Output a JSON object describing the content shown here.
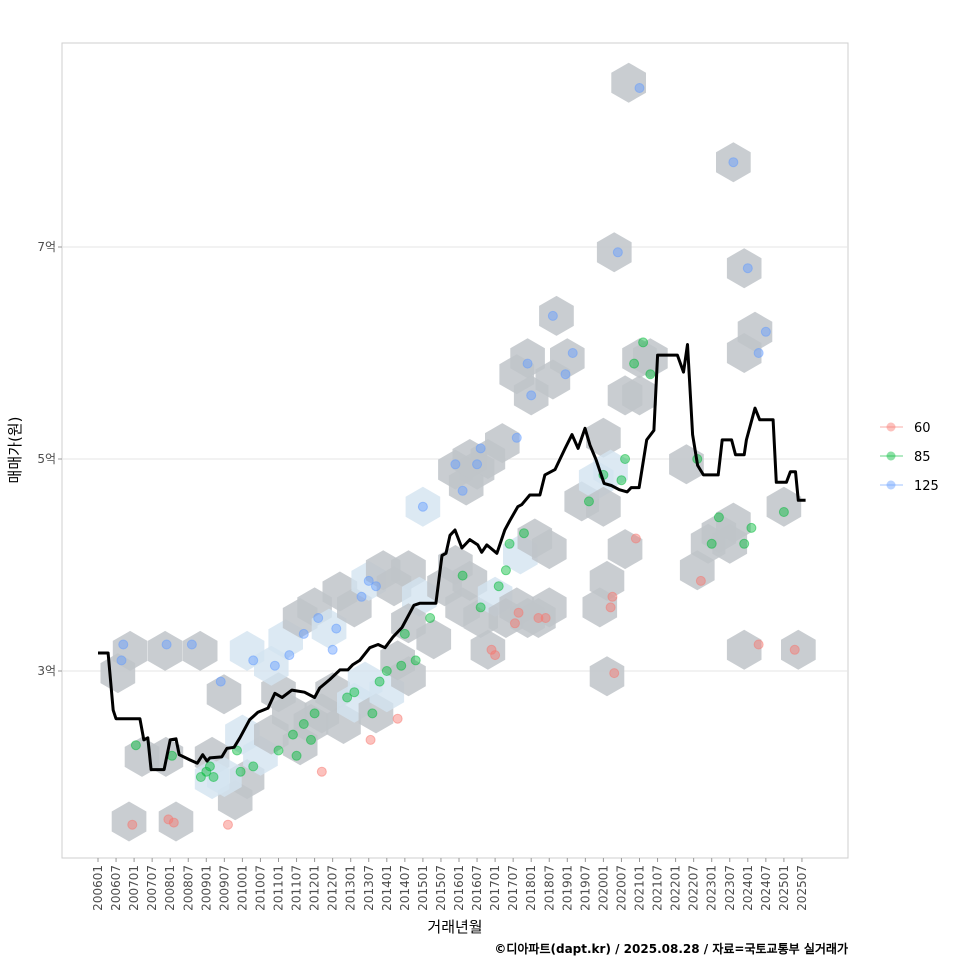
{
  "chart_data": {
    "type": "scatter",
    "xlabel": "거래년월",
    "ylabel": "매매가(원)",
    "caption": "©디아파트(dapt.kr) / 2025.08.28 / 자료=국토교통부 실거래가",
    "y_ticks": [
      {
        "value": 3,
        "label": "3억"
      },
      {
        "value": 5,
        "label": "5억"
      },
      {
        "value": 7,
        "label": "7억"
      }
    ],
    "y_unit": "억원",
    "ylim": [
      1.2,
      8.9
    ],
    "xlim": [
      2005.0,
      2026.3
    ],
    "x_ticks": [
      "200601",
      "200607",
      "200701",
      "200707",
      "200801",
      "200807",
      "200901",
      "200907",
      "201001",
      "201007",
      "201101",
      "201107",
      "201201",
      "201207",
      "201301",
      "201307",
      "201401",
      "201407",
      "201501",
      "201507",
      "201601",
      "201607",
      "201701",
      "201707",
      "201801",
      "201807",
      "201901",
      "201907",
      "202001",
      "202007",
      "202101",
      "202107",
      "202201",
      "202207",
      "202301",
      "202307",
      "202401",
      "202407",
      "202501",
      "202507"
    ],
    "grid": true,
    "legend": {
      "placement": "right",
      "entries": [
        {
          "label": "60",
          "color": "#F8766D"
        },
        {
          "label": "85",
          "color": "#00BA38"
        },
        {
          "label": "125",
          "color": "#619CFF"
        }
      ]
    },
    "hex_color": "#bfc4c9",
    "hex_light_color": "#d3e3f0",
    "hexbins": [
      [
        2006.86,
        1.58,
        0
      ],
      [
        2008.16,
        1.58,
        0
      ],
      [
        2006.55,
        2.98,
        0
      ],
      [
        2006.89,
        3.19,
        0
      ],
      [
        2007.86,
        3.19,
        0
      ],
      [
        2008.83,
        3.19,
        0
      ],
      [
        2009.49,
        2.78,
        0
      ],
      [
        2007.22,
        2.19,
        0
      ],
      [
        2007.88,
        2.19,
        0
      ],
      [
        2009.16,
        2.19,
        0
      ],
      [
        2009.8,
        1.78,
        0
      ],
      [
        2010.13,
        1.98,
        0
      ],
      [
        2010.13,
        3.19,
        1
      ],
      [
        2009.16,
        1.98,
        1
      ],
      [
        2009.5,
        2.0,
        1
      ],
      [
        2010.0,
        2.4,
        1
      ],
      [
        2010.5,
        2.2,
        1
      ],
      [
        2010.8,
        2.4,
        0
      ],
      [
        2011.0,
        2.8,
        0
      ],
      [
        2011.3,
        2.6,
        0
      ],
      [
        2011.6,
        2.3,
        0
      ],
      [
        2011.9,
        2.5,
        0
      ],
      [
        2012.2,
        2.6,
        0
      ],
      [
        2012.5,
        2.8,
        0
      ],
      [
        2012.8,
        2.5,
        0
      ],
      [
        2013.1,
        2.7,
        1
      ],
      [
        2013.4,
        2.9,
        1
      ],
      [
        2013.7,
        2.6,
        0
      ],
      [
        2014.0,
        2.8,
        1
      ],
      [
        2014.3,
        3.1,
        0
      ],
      [
        2014.6,
        2.95,
        0
      ],
      [
        2010.8,
        3.05,
        1
      ],
      [
        2011.2,
        3.3,
        1
      ],
      [
        2011.6,
        3.5,
        0
      ],
      [
        2012.0,
        3.6,
        0
      ],
      [
        2012.4,
        3.4,
        1
      ],
      [
        2012.7,
        3.75,
        0
      ],
      [
        2013.1,
        3.6,
        0
      ],
      [
        2013.5,
        3.85,
        1
      ],
      [
        2013.9,
        3.95,
        0
      ],
      [
        2014.2,
        3.8,
        0
      ],
      [
        2014.6,
        3.95,
        0
      ],
      [
        2014.9,
        3.7,
        1
      ],
      [
        2015.0,
        4.55,
        1
      ],
      [
        2014.6,
        3.45,
        0
      ],
      [
        2015.3,
        3.3,
        0
      ],
      [
        2015.6,
        3.8,
        0
      ],
      [
        2015.9,
        4.0,
        0
      ],
      [
        2016.1,
        3.6,
        0
      ],
      [
        2016.3,
        3.85,
        0
      ],
      [
        2016.6,
        3.5,
        0
      ],
      [
        2016.8,
        3.2,
        0
      ],
      [
        2017.0,
        3.7,
        1
      ],
      [
        2017.3,
        3.5,
        0
      ],
      [
        2017.6,
        3.6,
        0
      ],
      [
        2017.9,
        3.5,
        0
      ],
      [
        2018.2,
        3.5,
        0
      ],
      [
        2018.5,
        3.6,
        0
      ],
      [
        2017.7,
        4.1,
        1
      ],
      [
        2018.1,
        4.25,
        0
      ],
      [
        2018.5,
        4.15,
        0
      ],
      [
        2015.9,
        4.9,
        0
      ],
      [
        2016.2,
        4.75,
        0
      ],
      [
        2016.5,
        4.9,
        0
      ],
      [
        2016.3,
        5.0,
        0
      ],
      [
        2016.8,
        5.0,
        0
      ],
      [
        2017.2,
        5.15,
        0
      ],
      [
        2017.6,
        5.8,
        0
      ],
      [
        2017.9,
        5.95,
        0
      ],
      [
        2018.0,
        5.6,
        0
      ],
      [
        2018.7,
        6.35,
        0
      ],
      [
        2018.6,
        5.75,
        0
      ],
      [
        2019.0,
        5.95,
        0
      ],
      [
        2019.4,
        4.6,
        0
      ],
      [
        2019.8,
        4.8,
        1
      ],
      [
        2020.0,
        4.55,
        0
      ],
      [
        2020.0,
        5.2,
        0
      ],
      [
        2020.2,
        4.9,
        1
      ],
      [
        2019.9,
        3.6,
        0
      ],
      [
        2020.1,
        3.85,
        0
      ],
      [
        2020.1,
        2.95,
        0
      ],
      [
        2020.6,
        4.15,
        0
      ],
      [
        2020.6,
        5.6,
        0
      ],
      [
        2020.3,
        6.95,
        0
      ],
      [
        2021.0,
        5.6,
        0
      ],
      [
        2021.0,
        5.95,
        0
      ],
      [
        2020.7,
        8.55,
        0
      ],
      [
        2021.3,
        5.95,
        0
      ],
      [
        2022.3,
        4.95,
        0
      ],
      [
        2022.6,
        3.95,
        0
      ],
      [
        2022.9,
        4.2,
        0
      ],
      [
        2023.2,
        4.3,
        0
      ],
      [
        2023.5,
        4.2,
        0
      ],
      [
        2023.6,
        4.4,
        0
      ],
      [
        2023.6,
        7.8,
        0
      ],
      [
        2023.9,
        3.2,
        0
      ],
      [
        2023.9,
        6.8,
        0
      ],
      [
        2023.9,
        6.0,
        0
      ],
      [
        2024.2,
        6.2,
        0
      ],
      [
        2025.0,
        4.55,
        0
      ],
      [
        2025.4,
        3.2,
        0
      ]
    ],
    "points": [
      [
        2006.65,
        3.1,
        "125"
      ],
      [
        2006.7,
        3.25,
        "125"
      ],
      [
        2006.95,
        1.55,
        "60"
      ],
      [
        2007.05,
        2.3,
        "85"
      ],
      [
        2007.9,
        3.25,
        "125"
      ],
      [
        2007.95,
        1.6,
        "60"
      ],
      [
        2008.1,
        1.57,
        "60"
      ],
      [
        2008.05,
        2.2,
        "85"
      ],
      [
        2008.6,
        3.25,
        "125"
      ],
      [
        2008.85,
        2.0,
        "85"
      ],
      [
        2009.0,
        2.05,
        "85"
      ],
      [
        2009.1,
        2.1,
        "85"
      ],
      [
        2009.2,
        2.0,
        "85"
      ],
      [
        2009.4,
        2.9,
        "125"
      ],
      [
        2009.6,
        1.55,
        "60"
      ],
      [
        2009.85,
        2.25,
        "85"
      ],
      [
        2009.95,
        2.05,
        "85"
      ],
      [
        2010.3,
        2.1,
        "85"
      ],
      [
        2010.3,
        3.1,
        "125"
      ],
      [
        2010.9,
        3.05,
        "125"
      ],
      [
        2011.3,
        3.15,
        "125"
      ],
      [
        2011.0,
        2.25,
        "85"
      ],
      [
        2011.4,
        2.4,
        "85"
      ],
      [
        2011.5,
        2.2,
        "85"
      ],
      [
        2011.7,
        2.5,
        "85"
      ],
      [
        2011.9,
        2.35,
        "85"
      ],
      [
        2011.7,
        3.35,
        "125"
      ],
      [
        2012.1,
        3.5,
        "125"
      ],
      [
        2012.0,
        2.6,
        "85"
      ],
      [
        2012.2,
        2.05,
        "60"
      ],
      [
        2012.5,
        3.2,
        "125"
      ],
      [
        2012.6,
        3.4,
        "125"
      ],
      [
        2012.9,
        2.75,
        "85"
      ],
      [
        2013.1,
        2.8,
        "85"
      ],
      [
        2013.3,
        3.7,
        "125"
      ],
      [
        2013.5,
        3.85,
        "125"
      ],
      [
        2013.7,
        3.8,
        "125"
      ],
      [
        2013.55,
        2.35,
        "60"
      ],
      [
        2013.6,
        2.6,
        "85"
      ],
      [
        2013.8,
        2.9,
        "85"
      ],
      [
        2014.0,
        3.0,
        "85"
      ],
      [
        2014.3,
        2.55,
        "60"
      ],
      [
        2014.4,
        3.05,
        "85"
      ],
      [
        2014.5,
        3.35,
        "85"
      ],
      [
        2014.8,
        3.1,
        "85"
      ],
      [
        2015.0,
        4.55,
        "125"
      ],
      [
        2015.2,
        3.5,
        "85"
      ],
      [
        2015.9,
        4.95,
        "125"
      ],
      [
        2016.1,
        4.7,
        "125"
      ],
      [
        2016.5,
        4.95,
        "125"
      ],
      [
        2016.6,
        5.1,
        "125"
      ],
      [
        2016.1,
        3.9,
        "85"
      ],
      [
        2016.6,
        3.6,
        "85"
      ],
      [
        2016.9,
        3.2,
        "60"
      ],
      [
        2017.0,
        3.15,
        "60"
      ],
      [
        2017.1,
        3.8,
        "85"
      ],
      [
        2017.3,
        3.95,
        "85"
      ],
      [
        2017.4,
        4.2,
        "85"
      ],
      [
        2017.55,
        3.45,
        "60"
      ],
      [
        2017.65,
        3.55,
        "60"
      ],
      [
        2017.8,
        4.3,
        "85"
      ],
      [
        2017.6,
        5.2,
        "125"
      ],
      [
        2017.9,
        5.9,
        "125"
      ],
      [
        2018.0,
        5.6,
        "125"
      ],
      [
        2018.2,
        3.5,
        "60"
      ],
      [
        2018.4,
        3.5,
        "60"
      ],
      [
        2018.6,
        6.35,
        "125"
      ],
      [
        2018.95,
        5.8,
        "125"
      ],
      [
        2019.15,
        6.0,
        "125"
      ],
      [
        2019.6,
        4.6,
        "85"
      ],
      [
        2020.0,
        4.85,
        "85"
      ],
      [
        2020.5,
        4.8,
        "85"
      ],
      [
        2020.6,
        5.0,
        "85"
      ],
      [
        2020.2,
        3.6,
        "60"
      ],
      [
        2020.25,
        3.7,
        "60"
      ],
      [
        2020.3,
        2.98,
        "60"
      ],
      [
        2020.4,
        6.95,
        "125"
      ],
      [
        2020.9,
        4.25,
        "60"
      ],
      [
        2020.85,
        5.9,
        "85"
      ],
      [
        2021.1,
        6.1,
        "85"
      ],
      [
        2021.0,
        8.5,
        "125"
      ],
      [
        2021.3,
        5.8,
        "85"
      ],
      [
        2022.6,
        5.0,
        "85"
      ],
      [
        2022.7,
        3.85,
        "60"
      ],
      [
        2023.0,
        4.2,
        "85"
      ],
      [
        2023.2,
        4.45,
        "85"
      ],
      [
        2023.6,
        7.8,
        "125"
      ],
      [
        2023.9,
        4.2,
        "85"
      ],
      [
        2024.0,
        6.8,
        "125"
      ],
      [
        2024.1,
        4.35,
        "85"
      ],
      [
        2024.3,
        6.0,
        "125"
      ],
      [
        2024.5,
        6.2,
        "125"
      ],
      [
        2024.3,
        3.25,
        "60"
      ],
      [
        2025.0,
        4.5,
        "85"
      ],
      [
        2025.3,
        3.2,
        "60"
      ]
    ],
    "median_line": {
      "name": "median",
      "color": "#000000",
      "x": [
        2006.0,
        2006.28,
        2006.42,
        2006.5,
        2007.16,
        2007.27,
        2007.38,
        2007.47,
        2007.83,
        2008.0,
        2008.16,
        2008.25,
        2008.55,
        2008.75,
        2008.9,
        2009.02,
        2009.1,
        2009.43,
        2009.57,
        2009.77,
        2009.93,
        2010.2,
        2010.43,
        2010.71,
        2010.9,
        2011.1,
        2011.37,
        2011.72,
        2012.0,
        2012.14,
        2012.42,
        2012.7,
        2012.92,
        2013.06,
        2013.25,
        2013.53,
        2013.76,
        2013.95,
        2014.17,
        2014.42,
        2014.75,
        2014.92,
        2015.36,
        2015.53,
        2015.64,
        2015.75,
        2015.89,
        2016.08,
        2016.3,
        2016.52,
        2016.63,
        2016.77,
        2017.05,
        2017.27,
        2017.41,
        2017.63,
        2017.74,
        2017.96,
        2018.24,
        2018.38,
        2018.66,
        2018.94,
        2019.13,
        2019.3,
        2019.49,
        2019.63,
        2019.8,
        2020.02,
        2020.22,
        2020.44,
        2020.66,
        2020.77,
        2020.99,
        2021.2,
        2021.4,
        2021.5,
        2022.05,
        2022.22,
        2022.33,
        2022.47,
        2022.61,
        2022.77,
        2022.85,
        2023.18,
        2023.29,
        2023.55,
        2023.66,
        2023.9,
        2023.96,
        2024.2,
        2024.33,
        2024.7,
        2024.79,
        2025.07,
        2025.18,
        2025.32,
        2025.4,
        2025.6
      ],
      "y": [
        3.17,
        3.17,
        2.63,
        2.55,
        2.55,
        2.35,
        2.37,
        2.07,
        2.07,
        2.35,
        2.36,
        2.21,
        2.16,
        2.13,
        2.21,
        2.15,
        2.18,
        2.19,
        2.27,
        2.28,
        2.37,
        2.54,
        2.61,
        2.65,
        2.79,
        2.75,
        2.82,
        2.8,
        2.75,
        2.84,
        2.92,
        3.01,
        3.01,
        3.06,
        3.1,
        3.22,
        3.25,
        3.22,
        3.32,
        3.41,
        3.62,
        3.64,
        3.64,
        4.09,
        4.11,
        4.28,
        4.33,
        4.16,
        4.24,
        4.19,
        4.12,
        4.19,
        4.11,
        4.33,
        4.42,
        4.55,
        4.57,
        4.66,
        4.66,
        4.85,
        4.9,
        5.1,
        5.23,
        5.1,
        5.29,
        5.13,
        4.99,
        4.77,
        4.75,
        4.71,
        4.69,
        4.73,
        4.73,
        5.18,
        5.27,
        5.98,
        5.98,
        5.82,
        6.08,
        5.23,
        4.94,
        4.85,
        4.85,
        4.85,
        5.18,
        5.18,
        5.04,
        5.04,
        5.18,
        5.48,
        5.37,
        5.37,
        4.78,
        4.78,
        4.88,
        4.88,
        4.61,
        4.61
      ]
    }
  }
}
